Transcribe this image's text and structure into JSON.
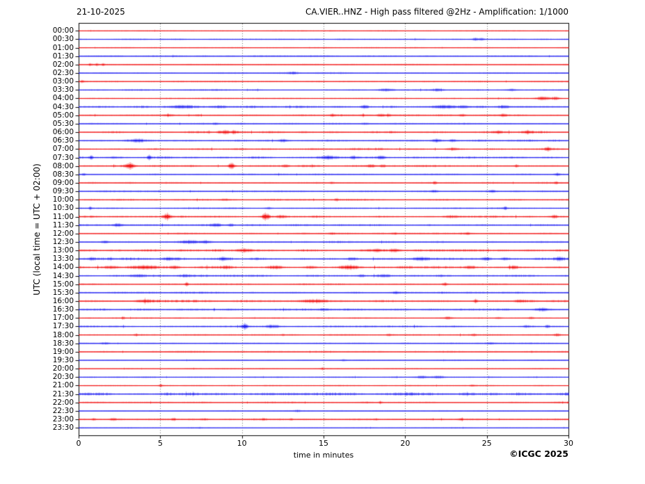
{
  "header": {
    "date": "21-10-2025",
    "title": "CA.VIER..HNZ - High pass filtered @2Hz - Amplification: 1/1000"
  },
  "axes": {
    "ylabel": "UTC (local time = UTC + 02:00)",
    "xlabel": "time in minutes",
    "x_ticks": [
      0,
      5,
      10,
      15,
      20,
      25,
      30
    ],
    "x_range": [
      0,
      30
    ]
  },
  "footer": {
    "copyright": "©ICGC 2025"
  },
  "palette": {
    "red": "#f00000",
    "blue": "#1010f0",
    "frame": "#000000",
    "grid": "#666666"
  },
  "chart_data": {
    "type": "seismogram-helicorder",
    "station": "CA.VIER..HNZ",
    "filter": "High pass filtered @2Hz",
    "amplification": "1/1000",
    "date": "21-10-2025",
    "minutes_per_line": 30,
    "grid_minutes": [
      5,
      10,
      15,
      20,
      25
    ],
    "rows": [
      {
        "time": "00:00",
        "color": "red",
        "noise": 0.45,
        "events": []
      },
      {
        "time": "00:30",
        "color": "blue",
        "noise": 0.5,
        "events": [
          [
            24.3,
            1.8,
            0.2
          ],
          [
            24.7,
            1.4,
            0.15
          ]
        ]
      },
      {
        "time": "01:00",
        "color": "red",
        "noise": 0.4,
        "events": []
      },
      {
        "time": "01:30",
        "color": "blue",
        "noise": 0.65,
        "events": []
      },
      {
        "time": "02:00",
        "color": "red",
        "noise": 0.55,
        "events": [
          [
            0.7,
            1.8,
            0.12
          ],
          [
            1.1,
            1.6,
            0.12
          ],
          [
            1.5,
            1.6,
            0.1
          ]
        ]
      },
      {
        "time": "02:30",
        "color": "blue",
        "noise": 0.6,
        "events": [
          [
            13.1,
            1.8,
            0.35
          ]
        ]
      },
      {
        "time": "03:00",
        "color": "red",
        "noise": 0.65,
        "events": [
          [
            0.2,
            1.4,
            0.1
          ]
        ]
      },
      {
        "time": "03:30",
        "color": "blue",
        "noise": 0.65,
        "events": [
          [
            18.8,
            1.8,
            0.45
          ],
          [
            22.0,
            1.8,
            0.35
          ],
          [
            26.5,
            1.3,
            0.25
          ]
        ]
      },
      {
        "time": "04:00",
        "color": "red",
        "noise": 0.55,
        "events": [
          [
            28.4,
            2.2,
            0.4
          ],
          [
            29.2,
            1.8,
            0.25
          ]
        ]
      },
      {
        "time": "04:30",
        "color": "blue",
        "noise": 0.95,
        "events": [
          [
            6.3,
            1.8,
            0.7
          ],
          [
            8.6,
            1.8,
            0.5
          ],
          [
            17.5,
            2.2,
            0.2
          ],
          [
            22.4,
            1.9,
            0.7
          ],
          [
            23.6,
            1.7,
            0.3
          ],
          [
            26.0,
            2.0,
            0.35
          ]
        ]
      },
      {
        "time": "05:00",
        "color": "red",
        "noise": 0.85,
        "events": [
          [
            5.5,
            1.6,
            0.2
          ],
          [
            7.3,
            1.4,
            0.2
          ],
          [
            15.5,
            1.8,
            0.2
          ],
          [
            18.5,
            2.2,
            0.25
          ],
          [
            19.0,
            1.8,
            0.15
          ],
          [
            23.5,
            1.8,
            0.2
          ],
          [
            26.0,
            1.4,
            0.2
          ]
        ]
      },
      {
        "time": "05:30",
        "color": "blue",
        "noise": 0.75,
        "events": [
          [
            8.4,
            1.6,
            0.2
          ],
          [
            17.5,
            1.4,
            0.2
          ]
        ]
      },
      {
        "time": "06:00",
        "color": "red",
        "noise": 0.95,
        "events": [
          [
            8.6,
            2.2,
            0.15
          ],
          [
            9.0,
            3.2,
            0.22
          ],
          [
            9.5,
            2.2,
            0.15
          ],
          [
            25.7,
            1.8,
            0.2
          ],
          [
            27.5,
            2.2,
            0.3
          ]
        ]
      },
      {
        "time": "06:30",
        "color": "blue",
        "noise": 0.95,
        "events": [
          [
            3.6,
            2.2,
            0.35
          ],
          [
            12.5,
            2.2,
            0.28
          ],
          [
            21.9,
            2.2,
            0.3
          ],
          [
            22.9,
            1.8,
            0.2
          ]
        ]
      },
      {
        "time": "07:00",
        "color": "red",
        "noise": 0.95,
        "events": [
          [
            22.9,
            1.8,
            0.3
          ],
          [
            28.7,
            2.2,
            0.2
          ]
        ]
      },
      {
        "time": "07:30",
        "color": "blue",
        "noise": 0.95,
        "events": [
          [
            0.75,
            2.8,
            0.12
          ],
          [
            4.3,
            3.8,
            0.1
          ],
          [
            15.3,
            2.2,
            0.5
          ],
          [
            16.8,
            2.2,
            0.2
          ],
          [
            18.5,
            1.8,
            0.25
          ]
        ]
      },
      {
        "time": "08:00",
        "color": "red",
        "noise": 0.85,
        "events": [
          [
            3.1,
            4.8,
            0.28
          ],
          [
            9.35,
            5.2,
            0.18
          ],
          [
            12.7,
            1.4,
            0.2
          ],
          [
            17.9,
            1.7,
            0.3
          ],
          [
            18.6,
            1.8,
            0.2
          ],
          [
            26.8,
            1.8,
            0.13
          ]
        ]
      },
      {
        "time": "08:30",
        "color": "blue",
        "noise": 0.75,
        "events": [
          [
            0.3,
            1.8,
            0.12
          ],
          [
            29.3,
            1.8,
            0.18
          ]
        ]
      },
      {
        "time": "09:00",
        "color": "red",
        "noise": 0.65,
        "events": [
          [
            15.5,
            1.4,
            0.18
          ],
          [
            21.8,
            1.8,
            0.13
          ],
          [
            29.2,
            1.6,
            0.13
          ]
        ]
      },
      {
        "time": "09:30",
        "color": "blue",
        "noise": 0.65,
        "events": [
          [
            21.8,
            1.4,
            0.25
          ],
          [
            25.3,
            1.6,
            0.25
          ]
        ]
      },
      {
        "time": "10:00",
        "color": "red",
        "noise": 0.75,
        "events": [
          [
            8.9,
            1.4,
            0.2
          ],
          [
            15.8,
            1.4,
            0.13
          ]
        ]
      },
      {
        "time": "10:30",
        "color": "blue",
        "noise": 0.65,
        "events": [
          [
            0.7,
            2.2,
            0.1
          ],
          [
            11.6,
            1.8,
            0.18
          ],
          [
            26.1,
            2.2,
            0.13
          ]
        ]
      },
      {
        "time": "11:00",
        "color": "red",
        "noise": 0.95,
        "events": [
          [
            5.4,
            4.8,
            0.22
          ],
          [
            11.45,
            5.2,
            0.22
          ],
          [
            12.4,
            1.8,
            0.3
          ],
          [
            22.8,
            1.6,
            0.5
          ],
          [
            29.1,
            1.8,
            0.2
          ]
        ]
      },
      {
        "time": "11:30",
        "color": "blue",
        "noise": 0.85,
        "events": [
          [
            2.4,
            2.2,
            0.28
          ],
          [
            8.4,
            2.2,
            0.35
          ],
          [
            9.3,
            1.8,
            0.2
          ]
        ]
      },
      {
        "time": "12:00",
        "color": "red",
        "noise": 0.65,
        "events": [
          [
            15.5,
            1.3,
            0.2
          ],
          [
            19.3,
            1.3,
            0.2
          ],
          [
            23.8,
            1.3,
            0.2
          ]
        ]
      },
      {
        "time": "12:30",
        "color": "blue",
        "noise": 0.75,
        "events": [
          [
            1.6,
            1.8,
            0.25
          ],
          [
            6.8,
            2.6,
            0.55
          ],
          [
            7.8,
            2.2,
            0.35
          ]
        ]
      },
      {
        "time": "13:00",
        "color": "red",
        "noise": 1.15,
        "events": [
          [
            10.2,
            1.8,
            0.4
          ],
          [
            18.2,
            1.6,
            0.3
          ],
          [
            19.4,
            1.8,
            0.3
          ]
        ]
      },
      {
        "time": "13:30",
        "color": "blue",
        "noise": 1.15,
        "events": [
          [
            0.8,
            1.8,
            0.2
          ],
          [
            5.5,
            2.2,
            0.45
          ],
          [
            8.8,
            1.8,
            0.2
          ],
          [
            16.7,
            1.8,
            0.3
          ],
          [
            21.0,
            2.2,
            0.55
          ],
          [
            25.0,
            2.2,
            0.28
          ],
          [
            26.1,
            1.8,
            0.28
          ],
          [
            29.4,
            2.2,
            0.28
          ]
        ]
      },
      {
        "time": "14:00",
        "color": "red",
        "noise": 1.25,
        "events": [
          [
            2.0,
            1.8,
            0.5
          ],
          [
            4.0,
            2.5,
            0.75
          ],
          [
            5.9,
            2.2,
            0.3
          ],
          [
            9.0,
            1.8,
            0.3
          ],
          [
            12.0,
            1.8,
            0.4
          ],
          [
            14.2,
            1.8,
            0.4
          ],
          [
            16.5,
            2.2,
            0.55
          ],
          [
            24.0,
            1.8,
            0.3
          ],
          [
            26.6,
            1.8,
            0.3
          ]
        ]
      },
      {
        "time": "14:30",
        "color": "blue",
        "noise": 1.0,
        "events": [
          [
            3.5,
            1.6,
            0.5
          ],
          [
            6.4,
            1.6,
            0.4
          ],
          [
            17.3,
            1.6,
            0.2
          ],
          [
            18.7,
            1.6,
            0.4
          ]
        ]
      },
      {
        "time": "15:00",
        "color": "red",
        "noise": 0.7,
        "events": [
          [
            6.6,
            2.8,
            0.1
          ],
          [
            22.4,
            2.2,
            0.18
          ]
        ]
      },
      {
        "time": "15:30",
        "color": "blue",
        "noise": 0.85,
        "events": [
          [
            19.4,
            1.6,
            0.28
          ]
        ]
      },
      {
        "time": "16:00",
        "color": "red",
        "noise": 1.1,
        "events": [
          [
            4.0,
            1.8,
            0.55
          ],
          [
            14.5,
            2.2,
            0.75
          ],
          [
            24.3,
            2.8,
            0.13
          ],
          [
            27.0,
            1.8,
            0.35
          ]
        ]
      },
      {
        "time": "16:30",
        "color": "blue",
        "noise": 0.95,
        "events": [
          [
            15.0,
            1.4,
            0.3
          ],
          [
            28.3,
            1.6,
            0.45
          ]
        ]
      },
      {
        "time": "17:00",
        "color": "red",
        "noise": 0.55,
        "events": [
          [
            2.7,
            1.8,
            0.1
          ],
          [
            22.6,
            1.6,
            0.28
          ],
          [
            25.7,
            1.4,
            0.2
          ],
          [
            27.7,
            1.4,
            0.2
          ]
        ]
      },
      {
        "time": "17:30",
        "color": "blue",
        "noise": 0.85,
        "events": [
          [
            10.15,
            4.2,
            0.22
          ],
          [
            11.8,
            1.8,
            0.45
          ],
          [
            27.4,
            1.4,
            0.2
          ],
          [
            28.7,
            2.2,
            0.13
          ]
        ]
      },
      {
        "time": "18:00",
        "color": "red",
        "noise": 0.6,
        "events": [
          [
            3.5,
            1.4,
            0.1
          ],
          [
            12.5,
            1.6,
            0.1
          ],
          [
            19.0,
            1.2,
            0.18
          ],
          [
            24.2,
            1.4,
            0.13
          ],
          [
            29.3,
            1.6,
            0.18
          ]
        ]
      },
      {
        "time": "18:30",
        "color": "blue",
        "noise": 0.6,
        "events": [
          [
            1.6,
            1.4,
            0.28
          ],
          [
            25.2,
            1.2,
            0.28
          ]
        ]
      },
      {
        "time": "19:00",
        "color": "red",
        "noise": 0.7,
        "events": []
      },
      {
        "time": "19:30",
        "color": "blue",
        "noise": 0.45,
        "events": [
          [
            16.2,
            1.1,
            0.18
          ]
        ]
      },
      {
        "time": "20:00",
        "color": "red",
        "noise": 0.45,
        "events": [
          [
            14.9,
            1.1,
            0.13
          ]
        ]
      },
      {
        "time": "20:30",
        "color": "blue",
        "noise": 0.55,
        "events": [
          [
            21.0,
            1.8,
            0.45
          ],
          [
            22.0,
            1.8,
            0.35
          ]
        ]
      },
      {
        "time": "21:00",
        "color": "red",
        "noise": 0.45,
        "events": [
          [
            5.0,
            2.2,
            0.12
          ],
          [
            24.1,
            1.1,
            0.13
          ]
        ]
      },
      {
        "time": "21:30",
        "color": "blue",
        "noise": 1.35,
        "events": []
      },
      {
        "time": "22:00",
        "color": "red",
        "noise": 0.7,
        "events": [
          [
            18.45,
            2.2,
            0.12
          ]
        ]
      },
      {
        "time": "22:30",
        "color": "blue",
        "noise": 0.45,
        "events": [
          [
            13.4,
            1.1,
            0.18
          ]
        ]
      },
      {
        "time": "23:00",
        "color": "red",
        "noise": 0.7,
        "events": [
          [
            0.9,
            1.6,
            0.13
          ],
          [
            2.1,
            1.4,
            0.18
          ],
          [
            5.8,
            1.6,
            0.13
          ],
          [
            7.7,
            1.4,
            0.25
          ],
          [
            11.3,
            1.3,
            0.13
          ],
          [
            13.0,
            1.3,
            0.13
          ],
          [
            18.2,
            1.3,
            0.18
          ],
          [
            23.4,
            1.3,
            0.18
          ]
        ]
      },
      {
        "time": "23:30",
        "color": "blue",
        "noise": 0.45,
        "events": []
      }
    ]
  }
}
